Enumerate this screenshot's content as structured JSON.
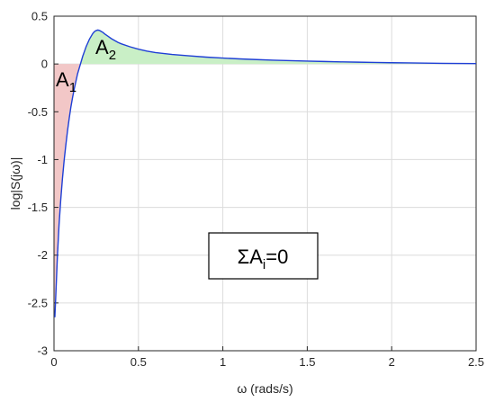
{
  "chart_data": {
    "type": "area",
    "title": "",
    "xlabel": "ω (rads/s)",
    "ylabel": "log|S(jω)|",
    "xlim": [
      0,
      2.5
    ],
    "ylim": [
      -3,
      0.5
    ],
    "xticks": [
      "0",
      "0.5",
      "1",
      "1.5",
      "2",
      "2.5"
    ],
    "yticks": [
      "0.5",
      "0",
      "-0.5",
      "-1",
      "-1.5",
      "-2",
      "-2.5",
      "-3"
    ],
    "grid": true,
    "series": [
      {
        "x": [
          0.005,
          0.01,
          0.02,
          0.03,
          0.04,
          0.05,
          0.06,
          0.07,
          0.08,
          0.09,
          0.1,
          0.11,
          0.12,
          0.13,
          0.14,
          0.15,
          0.16,
          0.17,
          0.18,
          0.19,
          0.2,
          0.21,
          0.22,
          0.23,
          0.24,
          0.25,
          0.26,
          0.27,
          0.28,
          0.29,
          0.3,
          0.32,
          0.34,
          0.36,
          0.38,
          0.4,
          0.45,
          0.5,
          0.55,
          0.6,
          0.7,
          0.8,
          0.9,
          1.0,
          1.1,
          1.2,
          1.3,
          1.4,
          1.5,
          1.6,
          1.7,
          1.8,
          1.9,
          2.0,
          2.1,
          2.2,
          2.3,
          2.4,
          2.5
        ],
        "y": [
          -2.65,
          -2.45,
          -2.02,
          -1.68,
          -1.42,
          -1.2,
          -1.01,
          -0.85,
          -0.7,
          -0.57,
          -0.45,
          -0.35,
          -0.26,
          -0.18,
          -0.1,
          -0.04,
          0.02,
          0.08,
          0.13,
          0.18,
          0.22,
          0.26,
          0.29,
          0.32,
          0.34,
          0.35,
          0.355,
          0.35,
          0.34,
          0.33,
          0.315,
          0.29,
          0.265,
          0.245,
          0.225,
          0.21,
          0.18,
          0.155,
          0.135,
          0.12,
          0.1,
          0.085,
          0.072,
          0.062,
          0.053,
          0.046,
          0.04,
          0.035,
          0.03,
          0.026,
          0.022,
          0.019,
          0.016,
          0.013,
          0.011,
          0.009,
          0.007,
          0.005,
          0.004
        ]
      }
    ],
    "fill_negative_color": "#f2c7c7",
    "fill_positive_color": "#c9efc6",
    "line_color": "#1f3fd6",
    "annotations": {
      "a1": {
        "main": "A",
        "sub": "1"
      },
      "a2": {
        "main": "A",
        "sub": "2"
      },
      "box": {
        "main": "ΣA",
        "sub": "i",
        "tail": "=0"
      }
    }
  }
}
